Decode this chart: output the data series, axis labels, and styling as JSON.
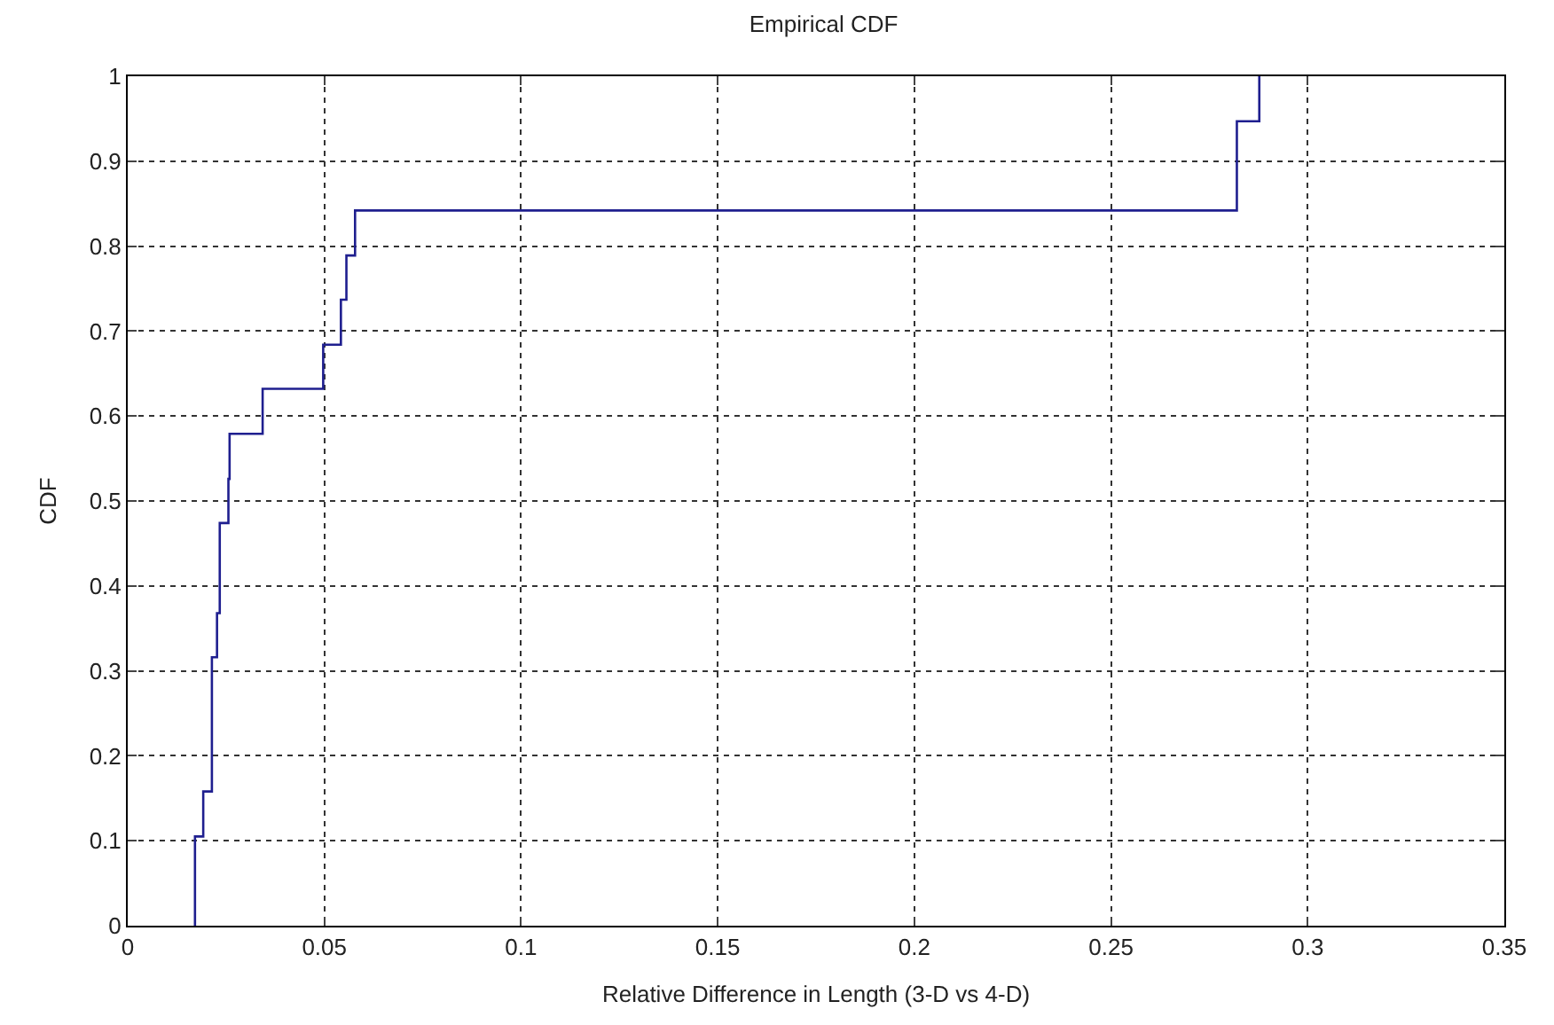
{
  "chart_data": {
    "type": "step",
    "title": "Empirical CDF",
    "xlabel": "Relative Difference in Length (3-D vs 4-D)",
    "ylabel": "CDF",
    "x": [
      0.0171,
      0.0171,
      0.0192,
      0.0214,
      0.0227,
      0.0234,
      0.0256,
      0.0259,
      0.0343,
      0.0497,
      0.0542,
      0.0556,
      0.0578,
      0.282,
      0.2877
    ],
    "series": [
      {
        "color": "#1f1f8f",
        "values": [
          0,
          0.105,
          0.158,
          0.316,
          0.368,
          0.474,
          0.526,
          0.579,
          0.632,
          0.684,
          0.737,
          0.789,
          0.842,
          0.947,
          1.0
        ]
      }
    ],
    "xlim": [
      0,
      0.35
    ],
    "xticks": [
      0,
      0.05,
      0.1,
      0.15,
      0.2,
      0.25,
      0.3,
      0.35
    ],
    "ylim": [
      0,
      1
    ],
    "yticks": [
      0,
      0.1,
      0.2,
      0.3,
      0.4,
      0.5,
      0.6,
      0.7,
      0.8,
      0.9,
      1
    ],
    "grid": true,
    "marker": "none",
    "line_style": "solid"
  }
}
